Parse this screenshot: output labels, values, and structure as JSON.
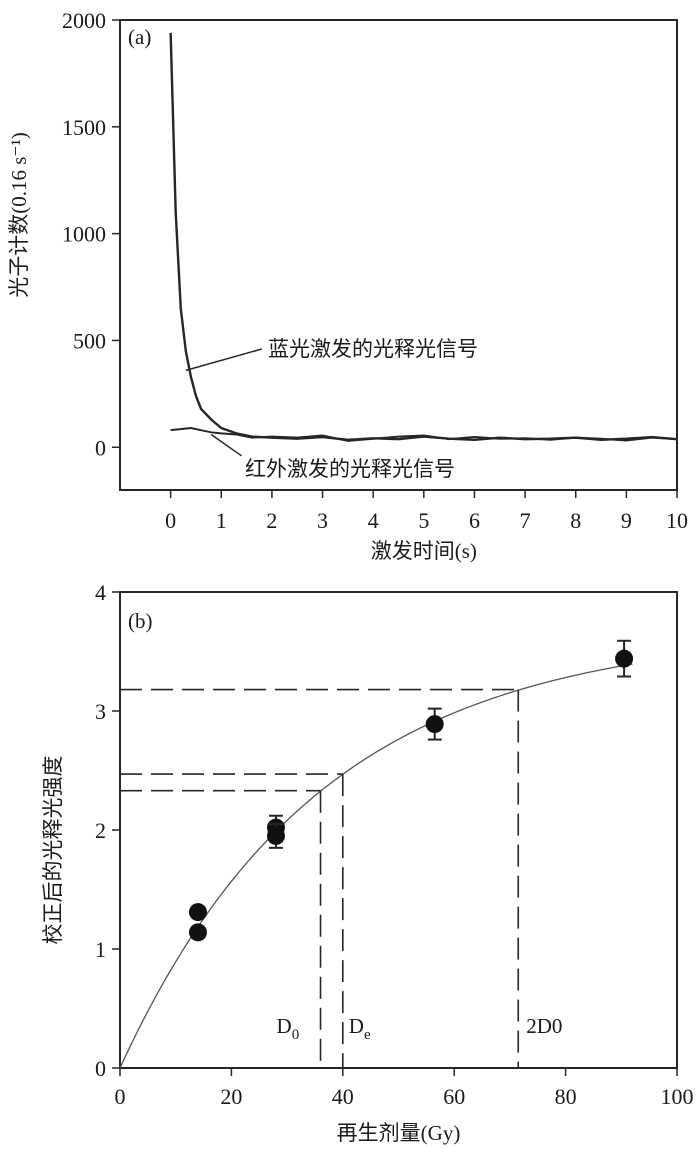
{
  "chart_data": [
    {
      "type": "line",
      "panel_label": "(a)",
      "xlabel": "激发时间(s)",
      "ylabel": "光子计数(0.16 s⁻¹)",
      "xlim": [
        -1,
        10
      ],
      "ylim": [
        -200,
        2000
      ],
      "xticks": [
        "0",
        "1",
        "2",
        "3",
        "4",
        "5",
        "6",
        "7",
        "8",
        "9",
        "10"
      ],
      "yticks": [
        "0",
        "500",
        "1000",
        "1500",
        "2000"
      ],
      "grid": false,
      "series": [
        {
          "name": "蓝光激发的光释光信号",
          "x": [
            0,
            0.1,
            0.2,
            0.3,
            0.4,
            0.5,
            0.6,
            0.8,
            1,
            1.3,
            1.6,
            2,
            2.5,
            3,
            3.5,
            4,
            4.5,
            5,
            5.5,
            6,
            6.5,
            7,
            7.5,
            8,
            8.5,
            9,
            9.5,
            10
          ],
          "y": [
            1940,
            1100,
            650,
            450,
            330,
            240,
            180,
            130,
            90,
            65,
            50,
            45,
            40,
            48,
            35,
            42,
            38,
            50,
            40,
            35,
            45,
            38,
            40,
            45,
            35,
            40,
            48,
            38
          ]
        },
        {
          "name": "红外激发的光释光信号",
          "x": [
            0,
            0.2,
            0.4,
            0.6,
            0.8,
            1,
            1.3,
            1.6,
            2,
            2.5,
            3,
            3.5,
            4,
            4.5,
            5,
            5.5,
            6,
            6.5,
            7,
            7.5,
            8,
            8.5,
            9,
            9.5,
            10
          ],
          "y": [
            80,
            85,
            90,
            80,
            70,
            65,
            60,
            45,
            50,
            45,
            55,
            30,
            40,
            50,
            55,
            38,
            48,
            40,
            42,
            35,
            45,
            40,
            32,
            45,
            38
          ]
        }
      ],
      "annotations": [
        "蓝光激发的光释光信号",
        "红外激发的光释光信号"
      ]
    },
    {
      "type": "scatter",
      "panel_label": "(b)",
      "xlabel": "再生剂量(Gy)",
      "ylabel": "校正后的光释光强度",
      "xlim": [
        0,
        100
      ],
      "ylim": [
        0,
        4
      ],
      "xticks": [
        "0",
        "20",
        "40",
        "60",
        "80",
        "100"
      ],
      "yticks": [
        "0",
        "1",
        "2",
        "3",
        "4"
      ],
      "grid": false,
      "points": [
        {
          "x": 14,
          "y": 1.31,
          "err": 0.04
        },
        {
          "x": 14,
          "y": 1.14,
          "err": 0.04
        },
        {
          "x": 28,
          "y": 2.02,
          "err": 0.1
        },
        {
          "x": 28,
          "y": 1.95,
          "err": 0.1
        },
        {
          "x": 56.5,
          "y": 2.89,
          "err": 0.13
        },
        {
          "x": 90.5,
          "y": 3.44,
          "err": 0.15
        }
      ],
      "fit": {
        "form": "A*(1-exp(-x/D0))",
        "A": 3.68,
        "D0": 36
      },
      "reference_lines": [
        {
          "label": "D0",
          "x": 36,
          "y": 2.33
        },
        {
          "label": "De",
          "x": 40,
          "y": 2.47
        },
        {
          "label": "2D0",
          "x": 71.5,
          "y": 3.18
        }
      ]
    }
  ]
}
